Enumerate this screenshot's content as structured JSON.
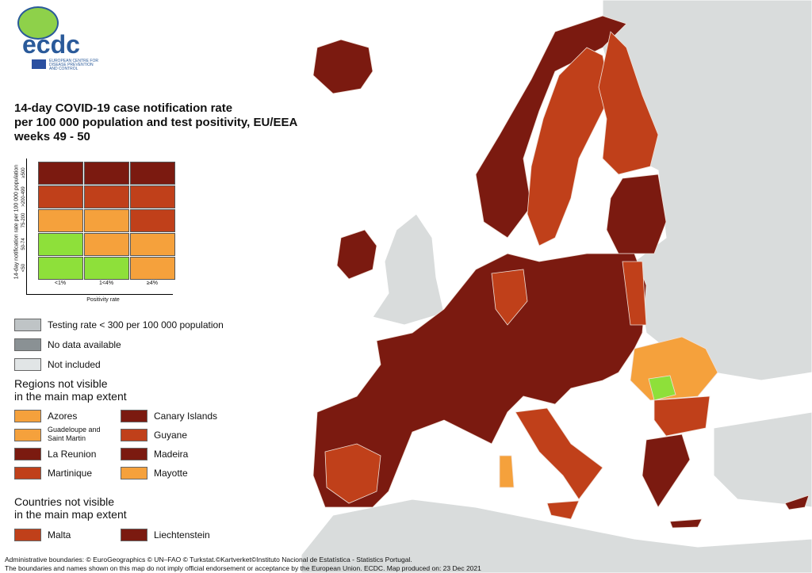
{
  "logo": {
    "name": "ecdc",
    "subtitle": [
      "EUROPEAN CENTRE FOR",
      "DISEASE PREVENTION",
      "AND CONTROL"
    ]
  },
  "title": [
    "14-day COVID-19 case notification rate",
    "per 100 000 population and test positivity, EU/EEA",
    "weeks 49 - 50"
  ],
  "matrix": {
    "y_label": "14-day notification rate per 100 000 population",
    "row_labels": [
      "≥500",
      ">200-499",
      "75-200",
      "50-74",
      "<50"
    ],
    "column_labels": [
      "<1%",
      "1<4%",
      "≥4%"
    ],
    "x_label": "Positivity rate",
    "cells": [
      [
        "#7b1a10",
        "#7b1a10",
        "#7b1a10"
      ],
      [
        "#c0401a",
        "#c0401a",
        "#c0401a"
      ],
      [
        "#f5a13c",
        "#f5a13c",
        "#c0401a"
      ],
      [
        "#8ee03a",
        "#f5a13c",
        "#f5a13c"
      ],
      [
        "#8ee03a",
        "#8ee03a",
        "#f5a13c"
      ]
    ]
  },
  "legend": [
    {
      "label": "Testing rate < 300 per 100 000 population",
      "color": "#bfc4c6"
    },
    {
      "label": "No data available",
      "color": "#8a9194"
    },
    {
      "label": "Not included",
      "color": "#e1e5e6"
    }
  ],
  "regions": {
    "title": [
      "Regions not visible",
      "in the main map extent"
    ],
    "items": [
      {
        "label": "Azores",
        "color": "#f5a13c"
      },
      {
        "label": "Canary Islands",
        "color": "#7b1a10"
      },
      {
        "label": "Guadeloupe and Saint Martin",
        "color": "#f5a13c"
      },
      {
        "label": "Guyane",
        "color": "#c0401a"
      },
      {
        "label": "La Reunion",
        "color": "#7b1a10"
      },
      {
        "label": "Madeira",
        "color": "#7b1a10"
      },
      {
        "label": "Martinique",
        "color": "#c0401a"
      },
      {
        "label": "Mayotte",
        "color": "#f5a13c"
      }
    ]
  },
  "countries": {
    "title": [
      "Countries not visible",
      "in the main map extent"
    ],
    "items": [
      {
        "label": "Malta",
        "color": "#c0401a"
      },
      {
        "label": "Liechtenstein",
        "color": "#7b1a10"
      }
    ]
  },
  "footer": [
    "Administrative boundaries: © EuroGeographics © UN–FAO © Turkstat.©Kartverket©Instituto Nacional de Estatística - Statistics Portugal.",
    "The boundaries and names shown on this map do not imply official endorsement or acceptance by the European Union. ECDC. Map produced on: 23 Dec 2021"
  ]
}
